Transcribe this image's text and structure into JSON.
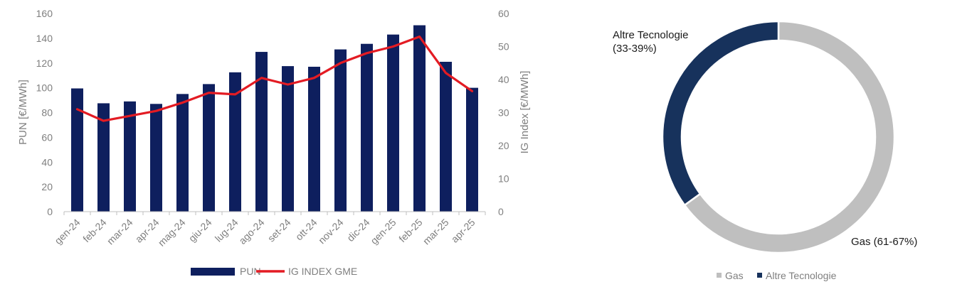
{
  "chart_data": [
    {
      "type": "bar",
      "categories": [
        "gen-24",
        "feb-24",
        "mar-24",
        "apr-24",
        "mag-24",
        "giu-24",
        "lug-24",
        "ago-24",
        "set-24",
        "ott-24",
        "nov-24",
        "dic-24",
        "gen-25",
        "feb-25",
        "mar-25",
        "apr-25"
      ],
      "series": [
        {
          "name": "PUN",
          "type": "bar",
          "axis": "left",
          "color": "#0e1f5e",
          "values": [
            99.5,
            87.5,
            89,
            87,
            95,
            103,
            112.5,
            129,
            117.5,
            117,
            131,
            135.5,
            143,
            150.5,
            121,
            100
          ]
        },
        {
          "name": "IG INDEX GME",
          "type": "line",
          "axis": "right",
          "color": "#e31b23",
          "values": [
            31,
            27.5,
            29,
            30.5,
            33,
            36,
            35.5,
            40.5,
            38.5,
            40.5,
            45,
            48,
            50,
            53,
            42,
            36.5
          ]
        }
      ],
      "ylabel": "PUN [€/MWh]",
      "ylim": [
        0,
        160
      ],
      "yticks": [
        0,
        20,
        40,
        60,
        80,
        100,
        120,
        140,
        160
      ],
      "y2label": "IG Index [€/MWh]",
      "y2lim": [
        0,
        60
      ],
      "y2ticks": [
        0,
        10,
        20,
        30,
        40,
        50,
        60
      ],
      "legend": "bottom",
      "grid": false
    },
    {
      "type": "pie",
      "donut": true,
      "categories": [
        "Gas",
        "Altre Tecnologie"
      ],
      "values": [
        65,
        35
      ],
      "colors": [
        "#bfbfbf",
        "#17325c"
      ],
      "labels": [
        "Gas (61-67%)",
        "Altre Tecnologie (33-39%)"
      ],
      "label_lines": {
        "gas": [
          "Gas (61-67%)"
        ],
        "altre": [
          "Altre Tecnologie",
          "(33-39%)"
        ]
      },
      "legend": "bottom"
    }
  ]
}
